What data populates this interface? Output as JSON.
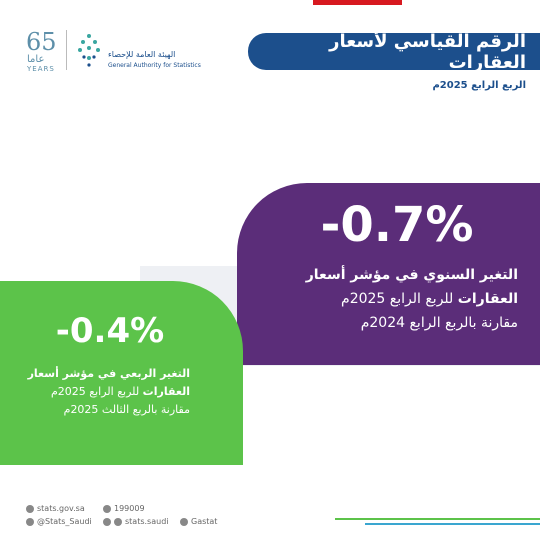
{
  "header": {
    "title": "الرقم القياسي لأسعار العقارات",
    "subtitle": "الربع الرابع 2025م"
  },
  "logo": {
    "anniversary": "65",
    "anniversary_word": "عاما",
    "anniversary_en": "YEARS",
    "org_ar": "الهيئة العامة للإحصاء",
    "org_en": "General Authority for Statistics"
  },
  "cards": [
    {
      "value": "-0.7%",
      "line1": "التغير السنوي في مؤشر أسعار",
      "line2_bold": "العقارات",
      "line2": "للربع الرابع 2025م",
      "line3": "مقارنة بالربع الرابع 2024م"
    },
    {
      "value": "-0.4%",
      "line1": "التغير الربعي في مؤشر أسعار",
      "line2_bold": "العقارات",
      "line2": "للربع الرابع 2025م",
      "line3": "مقارنة بالربع الثالث 2025م"
    }
  ],
  "footer": {
    "website": "stats.gov.sa",
    "phone": "199009",
    "twitter": "@Stats_Saudi",
    "instagram": "stats.saudi",
    "linkedin": "Gastat"
  }
}
